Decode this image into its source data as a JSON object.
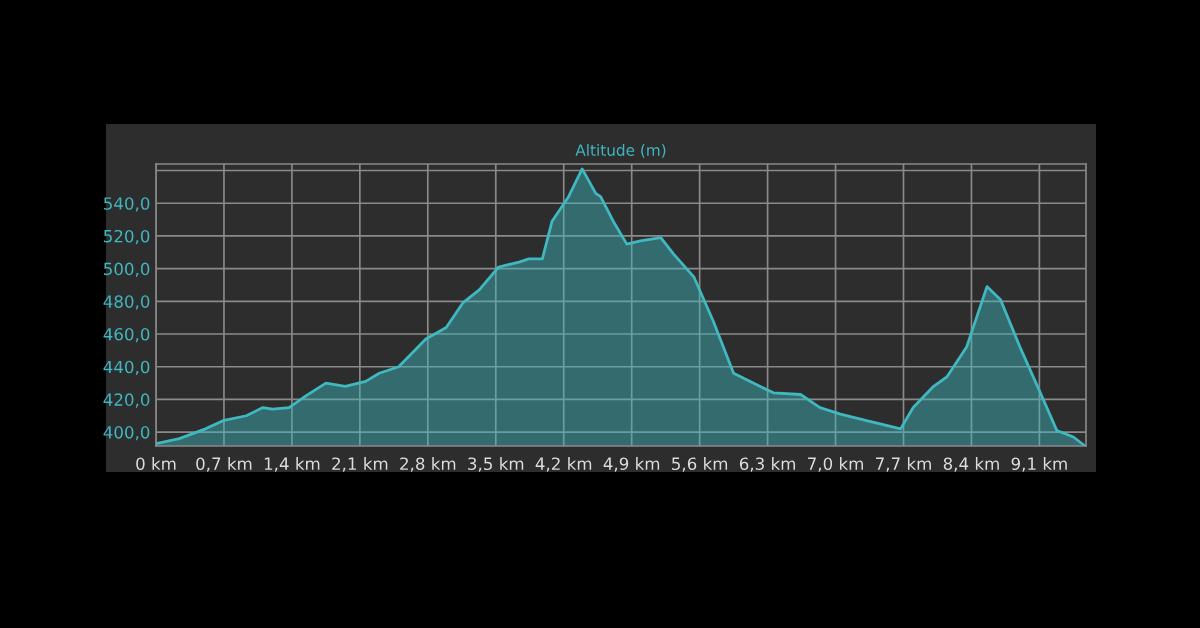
{
  "chart_data": {
    "type": "area",
    "title": "Altitude (m)",
    "x": [
      0,
      0.24,
      0.51,
      0.69,
      0.93,
      1.1,
      1.2,
      1.37,
      1.54,
      1.75,
      1.95,
      2.16,
      2.3,
      2.5,
      2.78,
      2.99,
      3.16,
      3.33,
      3.53,
      3.74,
      3.84,
      3.98,
      4.08,
      4.25,
      4.39,
      4.53,
      4.58,
      4.71,
      4.85,
      4.99,
      5.2,
      5.33,
      5.54,
      5.74,
      5.95,
      6.22,
      6.36,
      6.64,
      6.84,
      7.05,
      7.32,
      7.46,
      7.67,
      7.8,
      8.01,
      8.15,
      8.35,
      8.56,
      8.7,
      8.9,
      9.11,
      9.28,
      9.45,
      9.56
    ],
    "series": [
      {
        "color": "#3fb8c0",
        "values": [
          393,
          396,
          402,
          407,
          410,
          415,
          414,
          415,
          422,
          430,
          428,
          431,
          436,
          440,
          457,
          464,
          479,
          487,
          501,
          504,
          506,
          506,
          529,
          544,
          561,
          546,
          544,
          529,
          515,
          517,
          519,
          509,
          495,
          468,
          436,
          428,
          424,
          423,
          415,
          411,
          407,
          405,
          402,
          415,
          428,
          434,
          452,
          489,
          481,
          452,
          424,
          401,
          397,
          392
        ]
      }
    ],
    "xlim": [
      0,
      9.58
    ],
    "xticks": [
      {
        "value": 0,
        "label": "0 km"
      },
      {
        "value": 0.7,
        "label": "0,7 km"
      },
      {
        "value": 1.4,
        "label": "1,4 km"
      },
      {
        "value": 2.1,
        "label": "2,1 km"
      },
      {
        "value": 2.8,
        "label": "2,8 km"
      },
      {
        "value": 3.5,
        "label": "3,5 km"
      },
      {
        "value": 4.2,
        "label": "4,2 km"
      },
      {
        "value": 4.9,
        "label": "4,9 km"
      },
      {
        "value": 5.6,
        "label": "5,6 km"
      },
      {
        "value": 6.3,
        "label": "6,3 km"
      },
      {
        "value": 7.0,
        "label": "7,0 km"
      },
      {
        "value": 7.7,
        "label": "7,7 km"
      },
      {
        "value": 8.4,
        "label": "8,4 km"
      },
      {
        "value": 9.1,
        "label": "9,1 km"
      }
    ],
    "ylim": [
      391.5,
      564
    ],
    "yticks": [
      {
        "value": 400,
        "label": "400,0"
      },
      {
        "value": 420,
        "label": "420,0"
      },
      {
        "value": 440,
        "label": "440,0"
      },
      {
        "value": 460,
        "label": "460,0"
      },
      {
        "value": 480,
        "label": "480,0"
      },
      {
        "value": 500,
        "label": "500,0"
      },
      {
        "value": 520,
        "label": "520,0"
      },
      {
        "value": 540,
        "label": "540,0"
      },
      {
        "value": 560,
        "label": null
      }
    ],
    "grid": true
  }
}
